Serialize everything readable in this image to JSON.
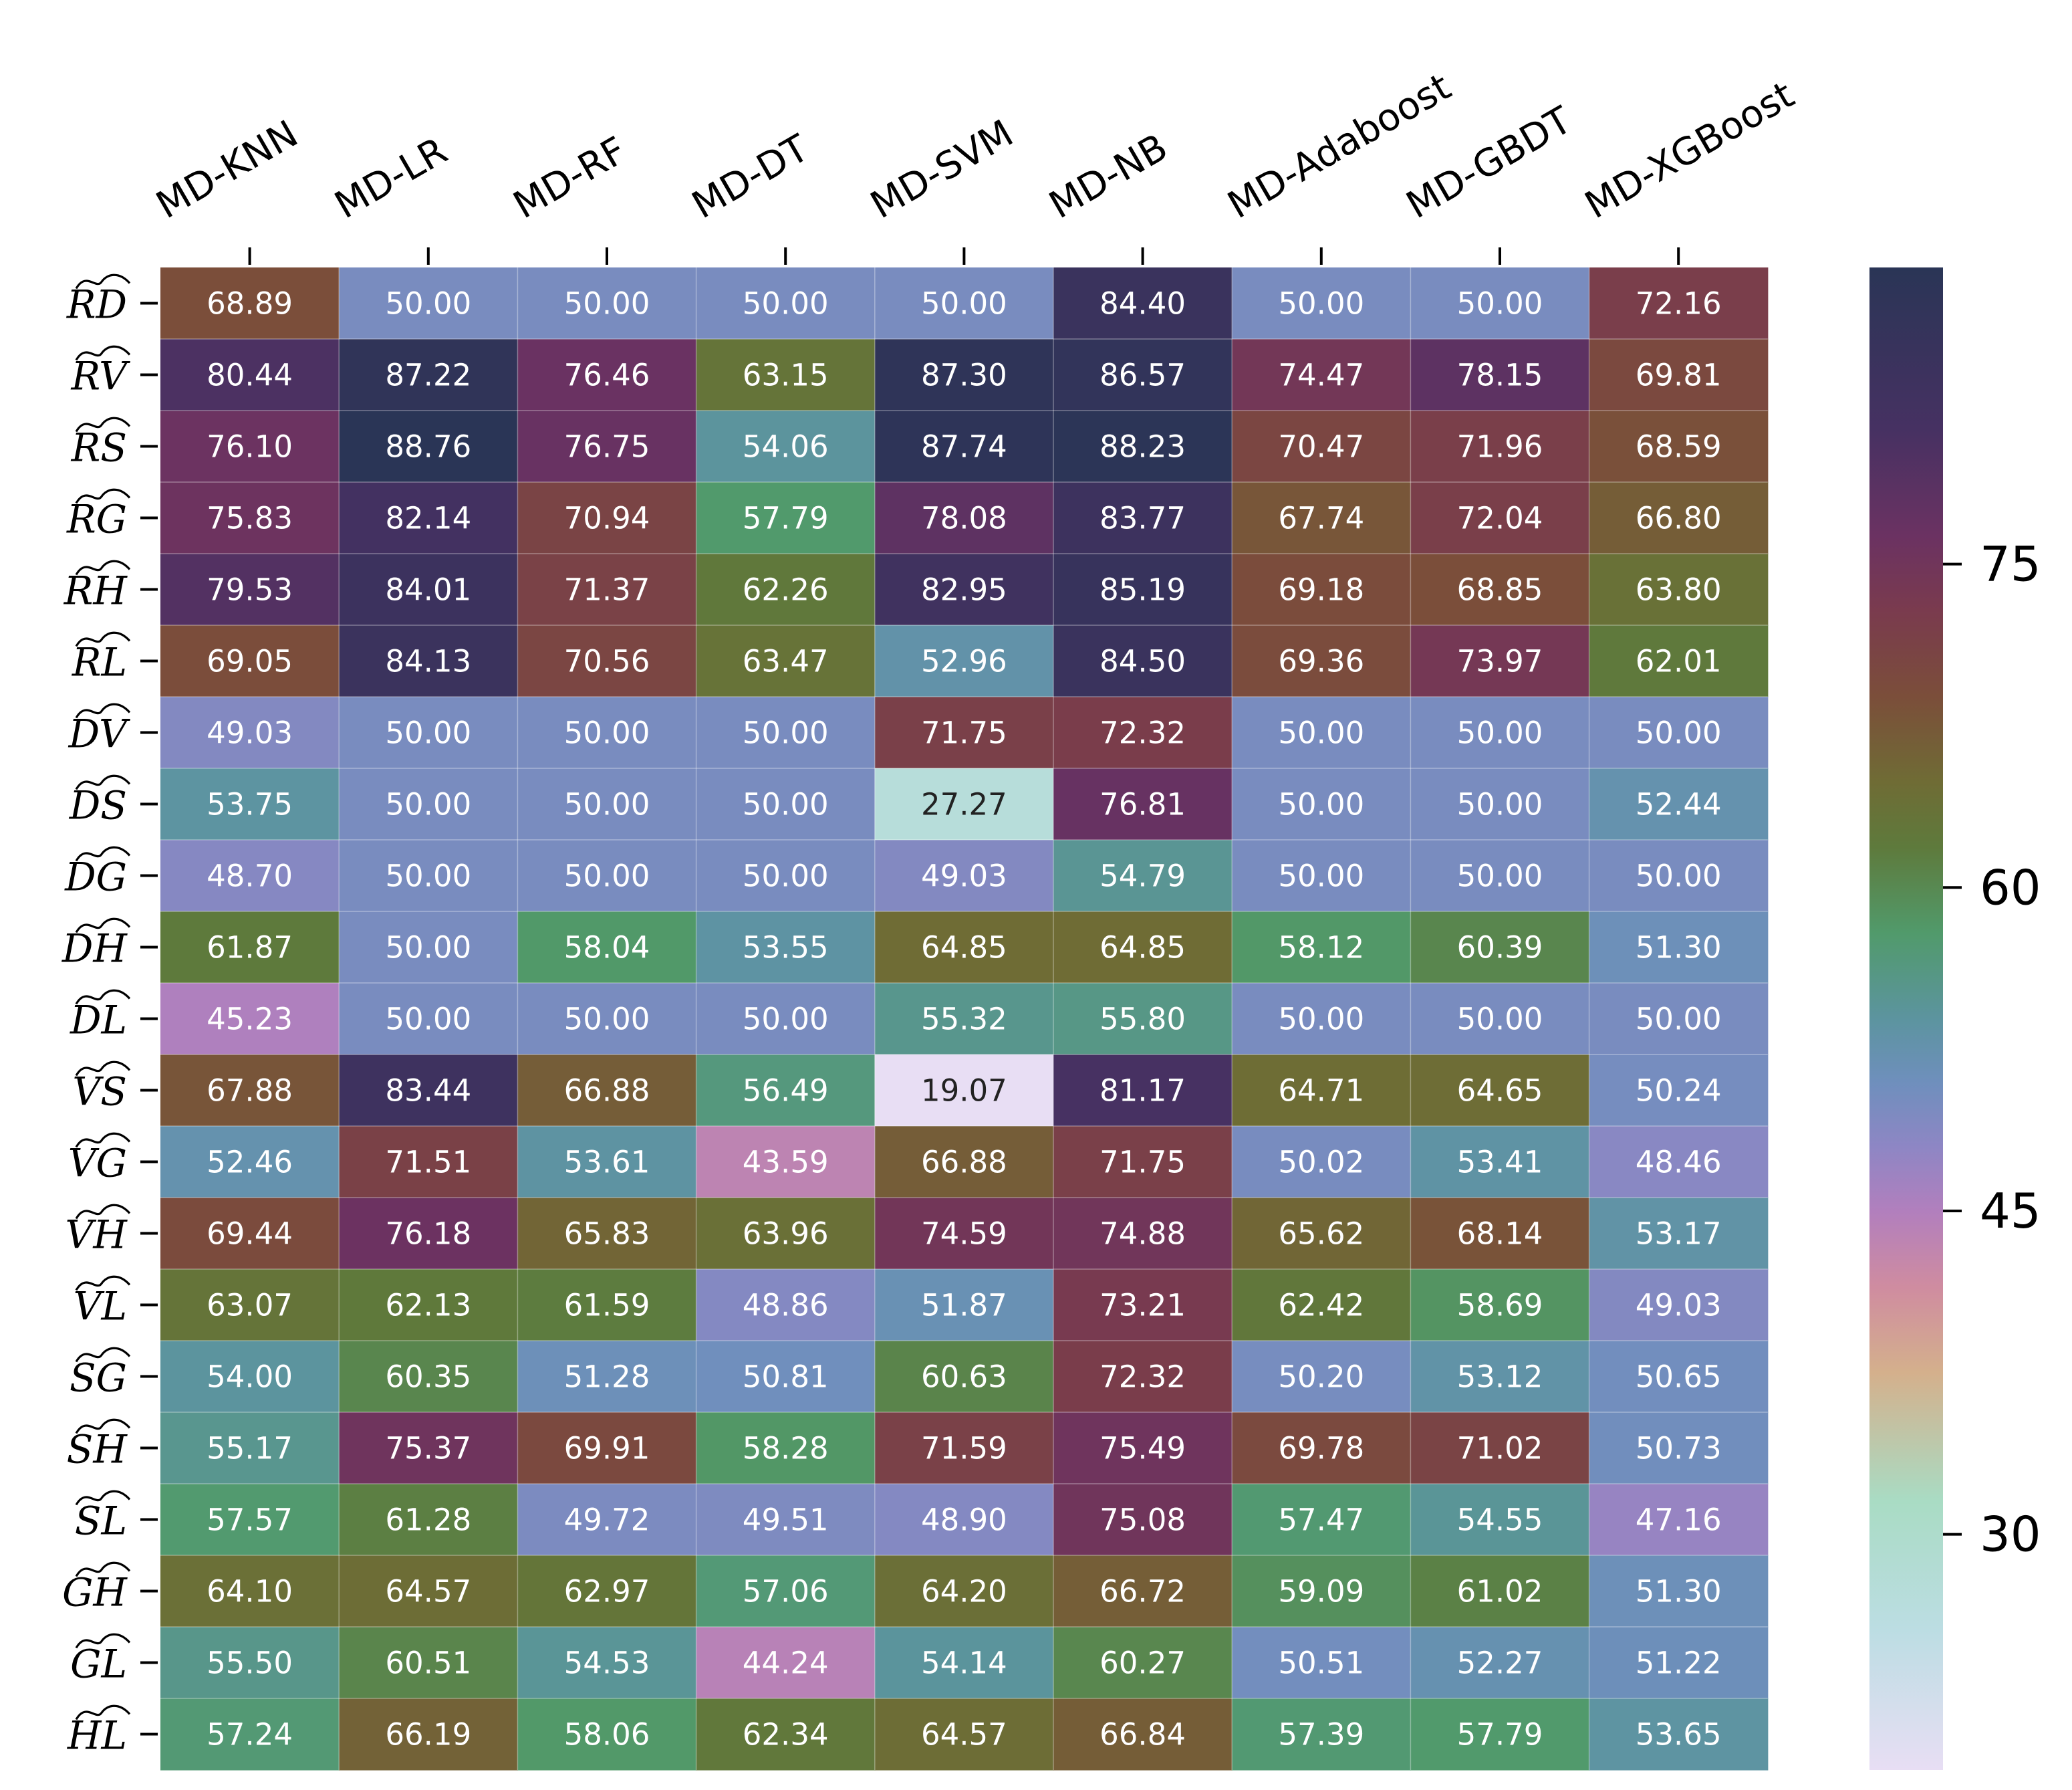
{
  "chart_data": {
    "type": "heatmap",
    "title": "",
    "xlabel": "",
    "ylabel": "",
    "columns": [
      "MD-KNN",
      "MD-LR",
      "MD-RF",
      "MD-DT",
      "MD-SVM",
      "MD-NB",
      "MD-Adaboost",
      "MD-GBDT",
      "MD-XGBoost"
    ],
    "rows": [
      "RD",
      "RV",
      "RS",
      "RG",
      "RH",
      "RL",
      "DV",
      "DS",
      "DG",
      "DH",
      "DL",
      "VS",
      "VG",
      "VH",
      "VL",
      "SG",
      "SH",
      "SL",
      "GH",
      "GL",
      "HL"
    ],
    "row_label_accent": "wide tilde over each row label",
    "values": [
      [
        68.89,
        50.0,
        50.0,
        50.0,
        50.0,
        84.4,
        50.0,
        50.0,
        72.16
      ],
      [
        80.44,
        87.22,
        76.46,
        63.15,
        87.3,
        86.57,
        74.47,
        78.15,
        69.81
      ],
      [
        76.1,
        88.76,
        76.75,
        54.06,
        87.74,
        88.23,
        70.47,
        71.96,
        68.59
      ],
      [
        75.83,
        82.14,
        70.94,
        57.79,
        78.08,
        83.77,
        67.74,
        72.04,
        66.8
      ],
      [
        79.53,
        84.01,
        71.37,
        62.26,
        82.95,
        85.19,
        69.18,
        68.85,
        63.8
      ],
      [
        69.05,
        84.13,
        70.56,
        63.47,
        52.96,
        84.5,
        69.36,
        73.97,
        62.01
      ],
      [
        49.03,
        50.0,
        50.0,
        50.0,
        71.75,
        72.32,
        50.0,
        50.0,
        50.0
      ],
      [
        53.75,
        50.0,
        50.0,
        50.0,
        27.27,
        76.81,
        50.0,
        50.0,
        52.44
      ],
      [
        48.7,
        50.0,
        50.0,
        50.0,
        49.03,
        54.79,
        50.0,
        50.0,
        50.0
      ],
      [
        61.87,
        50.0,
        58.04,
        53.55,
        64.85,
        64.85,
        58.12,
        60.39,
        51.3
      ],
      [
        45.23,
        50.0,
        50.0,
        50.0,
        55.32,
        55.8,
        50.0,
        50.0,
        50.0
      ],
      [
        67.88,
        83.44,
        66.88,
        56.49,
        19.07,
        81.17,
        64.71,
        64.65,
        50.24
      ],
      [
        52.46,
        71.51,
        53.61,
        43.59,
        66.88,
        71.75,
        50.02,
        53.41,
        48.46
      ],
      [
        69.44,
        76.18,
        65.83,
        63.96,
        74.59,
        74.88,
        65.62,
        68.14,
        53.17
      ],
      [
        63.07,
        62.13,
        61.59,
        48.86,
        51.87,
        73.21,
        62.42,
        58.69,
        49.03
      ],
      [
        54.0,
        60.35,
        51.28,
        50.81,
        60.63,
        72.32,
        50.2,
        53.12,
        50.65
      ],
      [
        55.17,
        75.37,
        69.91,
        58.28,
        71.59,
        75.49,
        69.78,
        71.02,
        50.73
      ],
      [
        57.57,
        61.28,
        49.72,
        49.51,
        48.9,
        75.08,
        57.47,
        54.55,
        47.16
      ],
      [
        64.1,
        64.57,
        62.97,
        57.06,
        64.2,
        66.72,
        59.09,
        61.02,
        51.3
      ],
      [
        55.5,
        60.51,
        54.53,
        44.24,
        54.14,
        60.27,
        50.51,
        52.27,
        51.22
      ],
      [
        57.24,
        66.19,
        58.06,
        62.34,
        64.57,
        66.84,
        57.39,
        57.79,
        53.65
      ]
    ],
    "colorbar": {
      "vmin": 19.07,
      "vmax": 88.76,
      "ticks": [
        30,
        45,
        60,
        75
      ],
      "colormap": "cubehelix-like (lavender → light teal → green → olive → brown → purple → navy)",
      "stops": [
        [
          0.0,
          "#e8def4"
        ],
        [
          0.13,
          "#bcdde3"
        ],
        [
          0.25,
          "#a9dcc4"
        ],
        [
          0.37,
          "#d4b08c"
        ],
        [
          0.45,
          "#cf8ca0"
        ],
        [
          0.52,
          "#b27fbd"
        ],
        [
          0.58,
          "#8e86c4"
        ],
        [
          0.64,
          "#6f8fbd"
        ],
        [
          0.7,
          "#5c949f"
        ],
        [
          0.78,
          "#519a6b"
        ],
        [
          0.86,
          "#5e7a3c"
        ],
        [
          0.92,
          "#6f6c35"
        ],
        [
          1.0,
          "#7b4e3a"
        ],
        [
          1.08,
          "#7a3b4e"
        ],
        [
          1.15,
          "#6b3262"
        ],
        [
          1.25,
          "#463162"
        ],
        [
          1.4,
          "#2a3556"
        ]
      ],
      "cell_text_dark_below": 30,
      "cell_text_light": "#ffffff",
      "cell_text_dark": "#222222"
    },
    "grid": false,
    "legend": "colorbar-right"
  }
}
